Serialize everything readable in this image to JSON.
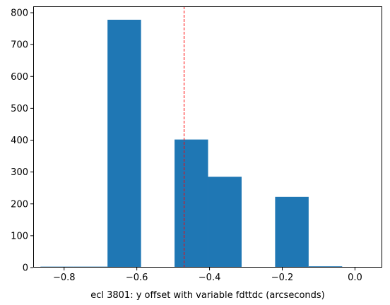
{
  "chart_data": {
    "type": "bar",
    "title": "",
    "xlabel": "ecl 3801: y offset with variable fdttdc (arcseconds)",
    "ylabel": "",
    "xlim": [
      -0.885,
      0.075
    ],
    "ylim": [
      0,
      820
    ],
    "xticks": [
      -0.8,
      -0.6,
      -0.4,
      -0.2,
      0.0
    ],
    "xtick_labels": [
      "−0.8",
      "−0.6",
      "−0.4",
      "−0.2",
      "0.0"
    ],
    "yticks": [
      0,
      100,
      200,
      300,
      400,
      500,
      600,
      700,
      800
    ],
    "ytick_labels": [
      "0",
      "100",
      "200",
      "300",
      "400",
      "500",
      "600",
      "700",
      "800"
    ],
    "bin_edges": [
      -0.865,
      -0.7728,
      -0.6806,
      -0.5884,
      -0.4962,
      -0.404,
      -0.3118,
      -0.2196,
      -0.1274,
      -0.0352,
      0.057
    ],
    "counts": [
      3,
      3,
      778,
      0,
      402,
      285,
      0,
      222,
      4,
      2
    ],
    "bar_color": "#1f77b4",
    "reference_line": {
      "x": -0.47,
      "color": "#ff0000",
      "style": "dashed"
    },
    "grid": false,
    "legend": "none"
  }
}
